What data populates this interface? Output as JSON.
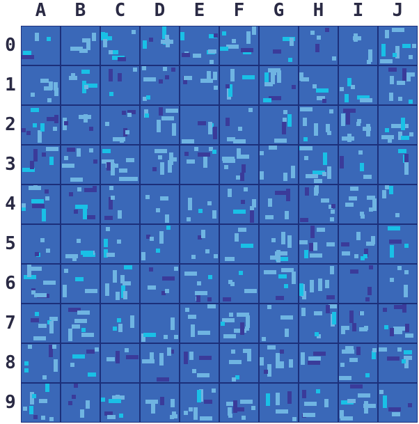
{
  "board": {
    "columns": [
      "A",
      "B",
      "C",
      "D",
      "E",
      "F",
      "G",
      "H",
      "I",
      "J"
    ],
    "rows": [
      "0",
      "1",
      "2",
      "3",
      "4",
      "5",
      "6",
      "7",
      "8",
      "9"
    ]
  },
  "colors": {
    "water": "#3a68b8",
    "grid_line": "#1c2f7a",
    "label": "#2a2a44",
    "speck_light": "#6fb4e2",
    "speck_cyan": "#19c0e6",
    "speck_dark": "#3a3b9a"
  }
}
